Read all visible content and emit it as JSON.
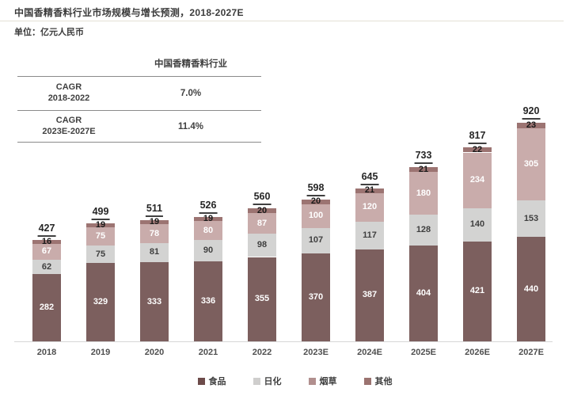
{
  "title": "中国香精香料行业市场规模与增长预测，2018-2027E",
  "unit_label": "单位：亿元人民币",
  "cagr_table": {
    "header": "中国香精香料行业",
    "rows": [
      {
        "label": "CAGR\n2018-2022",
        "value": "7.0%"
      },
      {
        "label": "CAGR\n2023E-2027E",
        "value": "11.4%"
      }
    ]
  },
  "chart_data": {
    "type": "bar",
    "stacked": true,
    "unit": "亿元人民币",
    "title": "中国香精香料行业市场规模与增长预测，2018-2027E",
    "categories": [
      "2018",
      "2019",
      "2020",
      "2021",
      "2022",
      "2023E",
      "2024E",
      "2025E",
      "2026E",
      "2027E"
    ],
    "series": [
      {
        "key": "food",
        "name": "食品",
        "color": "#7C5F5E",
        "legend_color": "#6D4B4A",
        "label_color": "#FFFFFF",
        "values": [
          282,
          329,
          333,
          336,
          355,
          370,
          387,
          404,
          421,
          440
        ]
      },
      {
        "key": "daily-chemical",
        "name": "日化",
        "color": "#D3D3D2",
        "legend_color": "#CFCECD",
        "label_color": "#3F3F3F",
        "values": [
          62,
          75,
          81,
          90,
          98,
          107,
          117,
          128,
          140,
          153
        ]
      },
      {
        "key": "tobacco",
        "name": "烟草",
        "color": "#C9ACAB",
        "legend_color": "#B18F8E",
        "label_color": "#FFFFFF",
        "values": [
          67,
          75,
          78,
          80,
          87,
          100,
          120,
          180,
          234,
          305
        ]
      },
      {
        "key": "others",
        "name": "其他",
        "color": "#9C7472",
        "legend_color": "#9B7370",
        "label_color": "#1A1A1A",
        "values": [
          16,
          19,
          19,
          19,
          20,
          20,
          21,
          21,
          22,
          23
        ]
      }
    ],
    "totals": [
      427,
      499,
      511,
      526,
      560,
      598,
      645,
      733,
      817,
      920
    ],
    "legend_position": "bottom",
    "grid": false,
    "colors": {
      "axis_line": "#D6D6D6",
      "total_label": "#262626",
      "axis_label": "#4F4F4F",
      "text": "#3B3B3B"
    }
  }
}
